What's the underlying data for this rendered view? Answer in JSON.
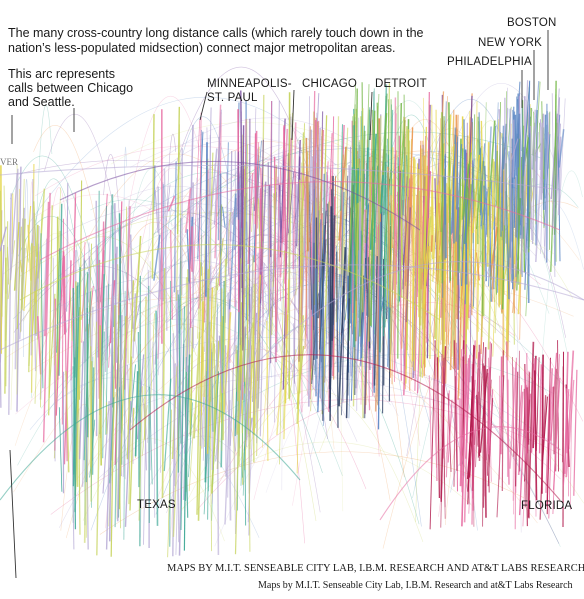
{
  "annotations": {
    "intro_line1": "The many cross-country long distance calls (which rarely touch down in the",
    "intro_line2": "nation’s less-populated midsection) connect major metropolitan areas.",
    "arc_line1": "This arc represents",
    "arc_line2": "calls between Chicago",
    "arc_line3": "and Seattle.",
    "cut_label": "VER"
  },
  "cities": {
    "boston": "BOSTON",
    "new_york": "NEW YORK",
    "philadelphia": "PHILADELPHIA",
    "minneapolis_l1": "MINNEAPOLIS-",
    "minneapolis_l2": "ST. PAUL",
    "chicago": "CHICAGO",
    "detroit": "DETROIT",
    "texas": "TEXAS",
    "florida": "FLORIDA"
  },
  "credits": {
    "caps": "MAPS BY M.I.T. SENSEABLE CITY LAB, I.B.M. RESEARCH AND AT&T LABS RESEARCH",
    "mixed": "Maps by M.I.T. Senseable City Lab, I.B.M. Research and at&T Labs Research"
  },
  "colors": {
    "texas_teal": "#3fa896",
    "florida_crimson": "#b0174a",
    "detroit_navy": "#2c3e63",
    "east_blue": "#5b87c4",
    "east_green": "#76b84a",
    "east_yellow": "#e5d54a",
    "orange": "#ec9a55",
    "pink": "#e66aa0",
    "purple": "#7a4fa0",
    "lavender": "#b4a8d4",
    "lime": "#c6d35c",
    "chicago_orange": "#d98a4c"
  }
}
